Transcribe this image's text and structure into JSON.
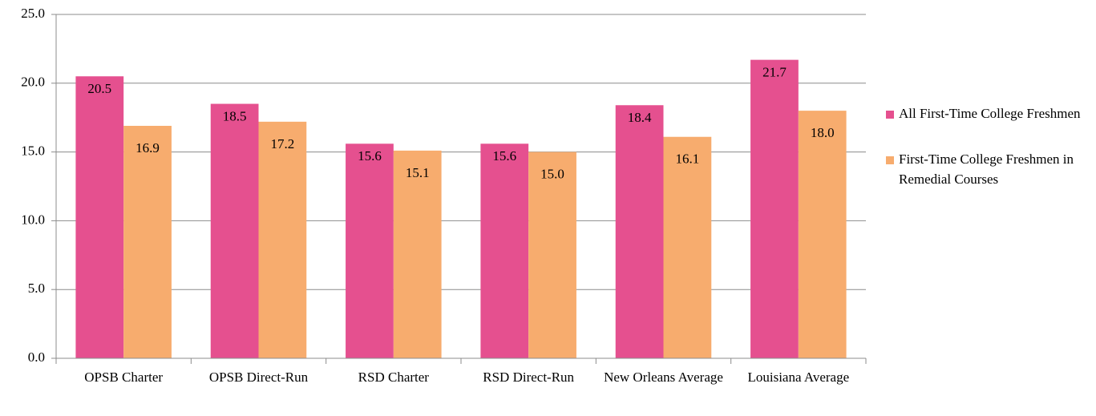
{
  "chart_data": {
    "type": "bar",
    "categories": [
      "OPSB Charter",
      "OPSB Direct-Run",
      "RSD Charter",
      "RSD Direct-Run",
      "New Orleans Average",
      "Louisiana Average"
    ],
    "series": [
      {
        "name": "All First-Time College Freshmen",
        "color": "#e5508f",
        "values": [
          20.5,
          18.5,
          15.6,
          15.6,
          18.4,
          21.7
        ],
        "value_labels": [
          "20.5",
          "18.5",
          "15.6",
          "15.6",
          "18.4",
          "21.7"
        ]
      },
      {
        "name": "First-Time College Freshmen in Remedial Courses",
        "color": "#f7ac6e",
        "values": [
          16.9,
          17.2,
          15.1,
          15.0,
          16.1,
          18.0
        ],
        "value_labels": [
          "16.9",
          "17.2",
          "15.1",
          "15.0",
          "16.1",
          "18.0"
        ]
      }
    ],
    "ylim": [
      0,
      25
    ],
    "yticks": [
      {
        "value": 0,
        "label": "0.0"
      },
      {
        "value": 5,
        "label": "5.0"
      },
      {
        "value": 10,
        "label": "10.0"
      },
      {
        "value": 15,
        "label": "15.0"
      },
      {
        "value": 20,
        "label": "20.0"
      },
      {
        "value": 25,
        "label": "25.0"
      }
    ],
    "grid": true,
    "legend": "right"
  }
}
